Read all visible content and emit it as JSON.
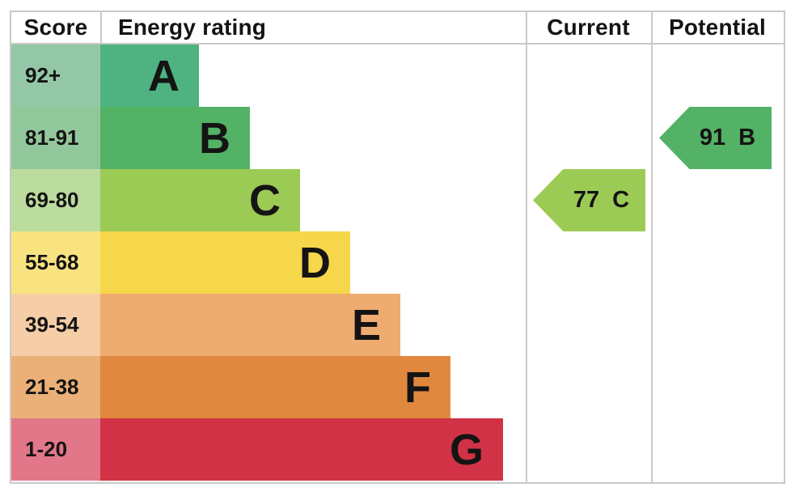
{
  "header": {
    "score": "Score",
    "energy_rating": "Energy rating",
    "current": "Current",
    "potential": "Potential"
  },
  "chart_data": {
    "type": "bar",
    "title": "EPC energy efficiency rating chart",
    "columns": [
      "Score",
      "Energy rating",
      "Current",
      "Potential"
    ],
    "bands": [
      {
        "letter": "A",
        "score": "92+",
        "bar_color": "#4eb381",
        "score_cell_color": "#93c7a6"
      },
      {
        "letter": "B",
        "score": "81-91",
        "bar_color": "#54b266",
        "score_cell_color": "#92c69b"
      },
      {
        "letter": "C",
        "score": "69-80",
        "bar_color": "#9ccb55",
        "score_cell_color": "#bcdc9d"
      },
      {
        "letter": "D",
        "score": "55-68",
        "bar_color": "#f6d64a",
        "score_cell_color": "#f8e380"
      },
      {
        "letter": "E",
        "score": "39-54",
        "bar_color": "#efac70",
        "score_cell_color": "#f5cda6"
      },
      {
        "letter": "F",
        "score": "21-38",
        "bar_color": "#e0883e",
        "score_cell_color": "#eab077"
      },
      {
        "letter": "G",
        "score": "1-20",
        "bar_color": "#d23246",
        "score_cell_color": "#e27789"
      }
    ],
    "current": {
      "value": "77",
      "letter": "C",
      "band_row": "C",
      "arrow_color": "#9ccb55"
    },
    "potential": {
      "value": "91",
      "letter": "B",
      "band_row": "B",
      "arrow_color": "#54b266"
    }
  }
}
